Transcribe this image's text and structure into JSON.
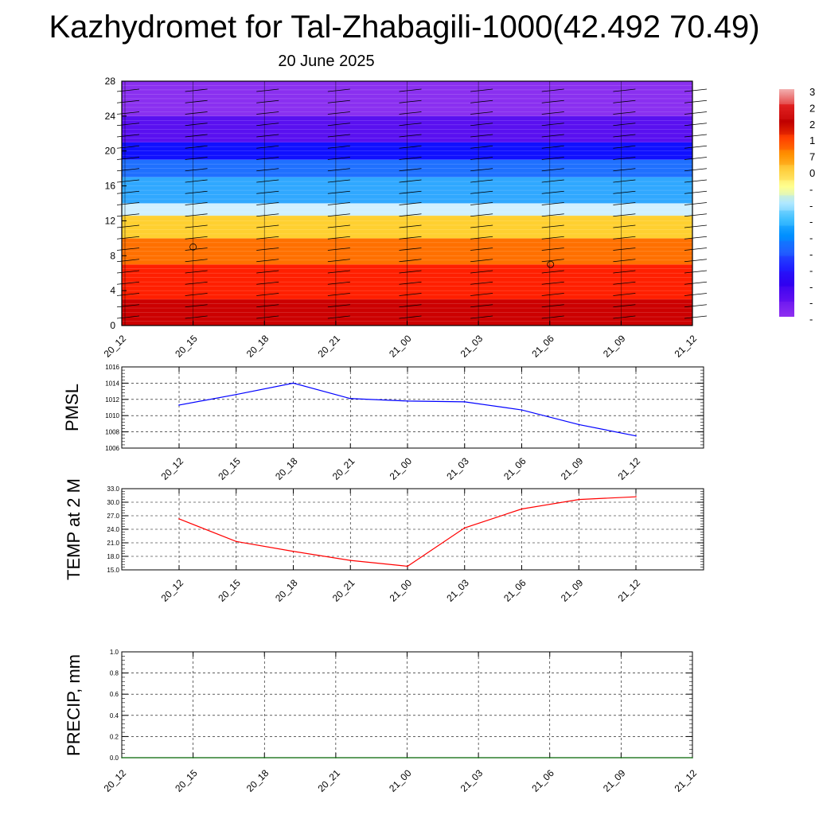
{
  "title": "Kazhydromet for Tal-Zhabagili-1000(42.492 70.49)",
  "subtitle": "20 June 2025",
  "chart_data": [
    {
      "type": "heatmap",
      "x_labels": [
        "20_12",
        "20_15",
        "20_18",
        "20_21",
        "21_00",
        "21_03",
        "21_06",
        "21_09",
        "21_12"
      ],
      "y_ticks": [
        0,
        4,
        8,
        12,
        16,
        20,
        24,
        28
      ],
      "ylim": [
        0,
        28
      ],
      "colorbar_labels": [
        "3",
        "2",
        "2",
        "1",
        "7",
        "0",
        "-",
        "-",
        "-",
        "-",
        "-",
        "-",
        "-",
        "-",
        "-"
      ],
      "colorbar_colors": [
        "#f2b0b0",
        "#e02020",
        "#c00000",
        "#ff4000",
        "#ff9000",
        "#ffd040",
        "#ffff90",
        "#b0e8ff",
        "#40c0ff",
        "#0090ff",
        "#2060ff",
        "#2020ff",
        "#3000f0",
        "#6010f0",
        "#9030f0"
      ],
      "note_layers": [
        {
          "from": 0,
          "to": 3,
          "color": "#cc0000"
        },
        {
          "from": 3,
          "to": 7,
          "color": "#ff2000"
        },
        {
          "from": 7,
          "to": 10,
          "color": "#ff7000"
        },
        {
          "from": 10,
          "to": 12.6,
          "color": "#ffd030"
        },
        {
          "from": 12.6,
          "to": 14,
          "color": "#d0f0ff"
        },
        {
          "from": 14,
          "to": 17,
          "color": "#30a8ff"
        },
        {
          "from": 17,
          "to": 19,
          "color": "#2070ff"
        },
        {
          "from": 19,
          "to": 21,
          "color": "#1010ff"
        },
        {
          "from": 21,
          "to": 24,
          "color": "#5a10f0"
        },
        {
          "from": 24,
          "to": 28,
          "color": "#8a30f0"
        }
      ]
    },
    {
      "type": "line",
      "ylabel": "PMSL",
      "x": [
        "20_12",
        "20_15",
        "20_18",
        "20_21",
        "21_00",
        "21_03",
        "21_06",
        "21_09",
        "21_12"
      ],
      "y_ticks": [
        1006,
        1008,
        1010,
        1012,
        1014,
        1016
      ],
      "ylim": [
        1006,
        1016
      ],
      "color": "#0000ff",
      "values": [
        1011.3,
        1012.6,
        1014.0,
        1012.1,
        1011.8,
        1011.7,
        1010.7,
        1008.9,
        1007.5
      ]
    },
    {
      "type": "line",
      "ylabel": "TEMP at 2 M",
      "x": [
        "20_12",
        "20_15",
        "20_18",
        "20_21",
        "21_00",
        "21_03",
        "21_06",
        "21_09",
        "21_12"
      ],
      "y_ticks": [
        "15.0",
        "18.0",
        "21.0",
        "24.0",
        "27.0",
        "30.0",
        "33.0"
      ],
      "ylim": [
        15,
        33
      ],
      "color": "#ff0000",
      "values": [
        26.3,
        21.3,
        19.1,
        17.1,
        15.8,
        24.3,
        28.5,
        30.6,
        31.2
      ]
    },
    {
      "type": "line",
      "ylabel": "PRECIP, mm",
      "x": [
        "20_12",
        "20_15",
        "20_18",
        "20_21",
        "21_00",
        "21_03",
        "21_06",
        "21_09",
        "21_12"
      ],
      "y_ticks": [
        "0.0",
        "0.2",
        "0.4",
        "0.6",
        "0.8",
        "1.0"
      ],
      "ylim": [
        0,
        1
      ],
      "color": "#006400",
      "values": [
        0,
        0,
        0,
        0,
        0,
        0,
        0,
        0,
        0
      ]
    }
  ]
}
